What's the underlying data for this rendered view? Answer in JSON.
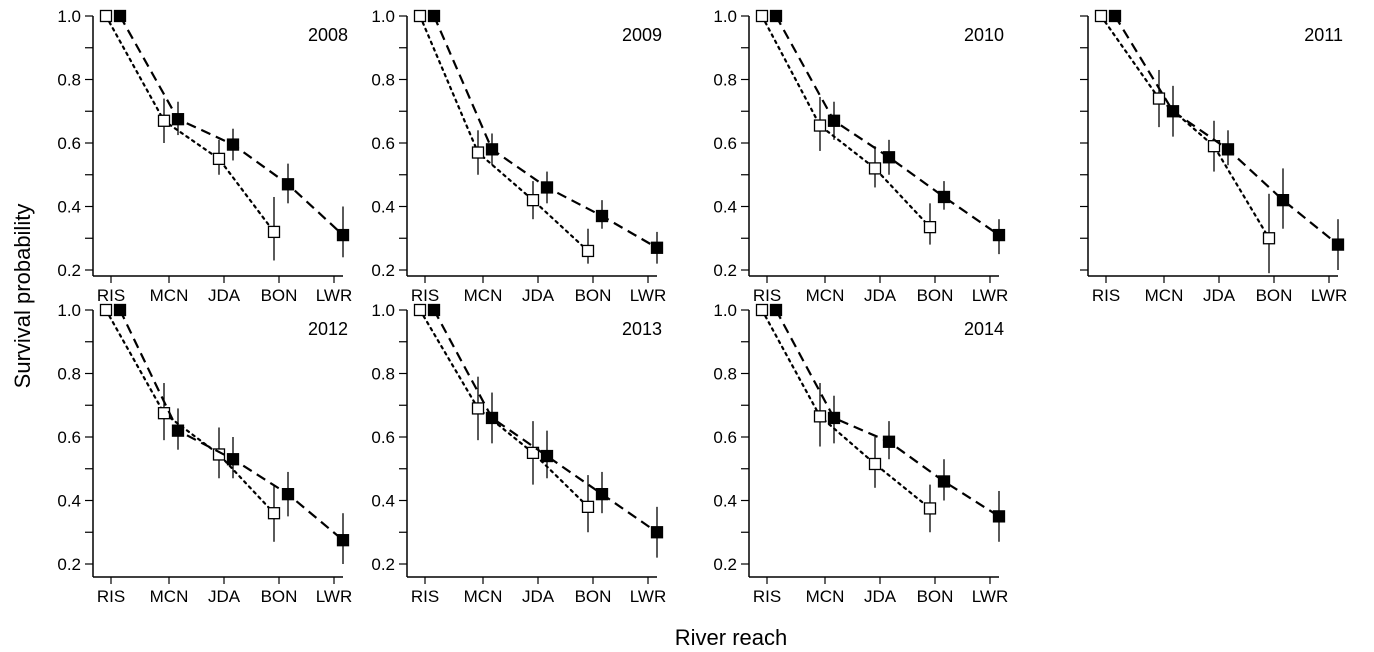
{
  "figure": {
    "ylabel": "Survival probability",
    "xlabel": "River reach"
  },
  "chart_data": [
    {
      "type": "scatter",
      "title": "2008",
      "categories": [
        "RIS",
        "MCN",
        "JDA",
        "BON",
        "LWR"
      ],
      "ylim": [
        0.2,
        1.0
      ],
      "yticks": [
        "0.2",
        "0.4",
        "0.6",
        "0.8",
        "1.0"
      ],
      "series": [
        {
          "style": "open-square-dotted",
          "points": [
            {
              "cat": "RIS",
              "y": 1.0
            },
            {
              "cat": "MCN",
              "y": 0.67,
              "lo": 0.6,
              "hi": 0.74
            },
            {
              "cat": "JDA",
              "y": 0.55,
              "lo": 0.5,
              "hi": 0.61
            },
            {
              "cat": "BON",
              "y": 0.32,
              "lo": 0.23,
              "hi": 0.43
            }
          ]
        },
        {
          "style": "filled-square-dashed",
          "points": [
            {
              "cat": "RIS",
              "y": 1.0
            },
            {
              "cat": "MCN",
              "y": 0.675,
              "lo": 0.625,
              "hi": 0.73
            },
            {
              "cat": "JDA",
              "y": 0.595,
              "lo": 0.545,
              "hi": 0.645
            },
            {
              "cat": "BON",
              "y": 0.47,
              "lo": 0.41,
              "hi": 0.535
            },
            {
              "cat": "LWR",
              "y": 0.31,
              "lo": 0.24,
              "hi": 0.4
            }
          ]
        }
      ]
    },
    {
      "type": "scatter",
      "title": "2009",
      "categories": [
        "RIS",
        "MCN",
        "JDA",
        "BON",
        "LWR"
      ],
      "ylim": [
        0.2,
        1.0
      ],
      "yticks": [
        "0.2",
        "0.4",
        "0.6",
        "0.8",
        "1.0"
      ],
      "series": [
        {
          "style": "open-square-dotted",
          "points": [
            {
              "cat": "RIS",
              "y": 1.0
            },
            {
              "cat": "MCN",
              "y": 0.57,
              "lo": 0.5,
              "hi": 0.64
            },
            {
              "cat": "JDA",
              "y": 0.42,
              "lo": 0.36,
              "hi": 0.48
            },
            {
              "cat": "BON",
              "y": 0.26,
              "lo": 0.22,
              "hi": 0.33
            }
          ]
        },
        {
          "style": "filled-square-dashed",
          "points": [
            {
              "cat": "RIS",
              "y": 1.0
            },
            {
              "cat": "MCN",
              "y": 0.58,
              "lo": 0.53,
              "hi": 0.63
            },
            {
              "cat": "JDA",
              "y": 0.46,
              "lo": 0.41,
              "hi": 0.51
            },
            {
              "cat": "BON",
              "y": 0.37,
              "lo": 0.33,
              "hi": 0.42
            },
            {
              "cat": "LWR",
              "y": 0.27,
              "lo": 0.22,
              "hi": 0.32
            }
          ]
        }
      ]
    },
    {
      "type": "scatter",
      "title": "2010",
      "categories": [
        "RIS",
        "MCN",
        "JDA",
        "BON",
        "LWR"
      ],
      "ylim": [
        0.2,
        1.0
      ],
      "yticks": [
        "0.2",
        "0.4",
        "0.6",
        "0.8",
        "1.0"
      ],
      "series": [
        {
          "style": "open-square-dotted",
          "points": [
            {
              "cat": "RIS",
              "y": 1.0
            },
            {
              "cat": "MCN",
              "y": 0.655,
              "lo": 0.575,
              "hi": 0.745
            },
            {
              "cat": "JDA",
              "y": 0.52,
              "lo": 0.46,
              "hi": 0.59
            },
            {
              "cat": "BON",
              "y": 0.335,
              "lo": 0.28,
              "hi": 0.41
            }
          ]
        },
        {
          "style": "filled-square-dashed",
          "points": [
            {
              "cat": "RIS",
              "y": 1.0
            },
            {
              "cat": "MCN",
              "y": 0.67,
              "lo": 0.61,
              "hi": 0.73
            },
            {
              "cat": "JDA",
              "y": 0.555,
              "lo": 0.5,
              "hi": 0.61
            },
            {
              "cat": "BON",
              "y": 0.43,
              "lo": 0.39,
              "hi": 0.48
            },
            {
              "cat": "LWR",
              "y": 0.31,
              "lo": 0.25,
              "hi": 0.36
            }
          ]
        }
      ]
    },
    {
      "type": "scatter",
      "title": "2011",
      "categories": [
        "RIS",
        "MCN",
        "JDA",
        "BON",
        "LWR"
      ],
      "ylim": [
        0.2,
        1.0
      ],
      "yticks": [],
      "series": [
        {
          "style": "open-square-dotted",
          "points": [
            {
              "cat": "RIS",
              "y": 1.0
            },
            {
              "cat": "MCN",
              "y": 0.74,
              "lo": 0.65,
              "hi": 0.83
            },
            {
              "cat": "JDA",
              "y": 0.59,
              "lo": 0.51,
              "hi": 0.67
            },
            {
              "cat": "BON",
              "y": 0.3,
              "lo": 0.19,
              "hi": 0.44
            }
          ]
        },
        {
          "style": "filled-square-dashed",
          "points": [
            {
              "cat": "RIS",
              "y": 1.0
            },
            {
              "cat": "MCN",
              "y": 0.7,
              "lo": 0.62,
              "hi": 0.78
            },
            {
              "cat": "JDA",
              "y": 0.58,
              "lo": 0.53,
              "hi": 0.64
            },
            {
              "cat": "BON",
              "y": 0.42,
              "lo": 0.33,
              "hi": 0.52
            },
            {
              "cat": "LWR",
              "y": 0.28,
              "lo": 0.2,
              "hi": 0.36
            }
          ]
        }
      ]
    },
    {
      "type": "scatter",
      "title": "2012",
      "categories": [
        "RIS",
        "MCN",
        "JDA",
        "BON",
        "LWR"
      ],
      "ylim": [
        0.2,
        1.0
      ],
      "yticks": [
        "0.2",
        "0.4",
        "0.6",
        "0.8",
        "1.0"
      ],
      "series": [
        {
          "style": "open-square-dotted",
          "points": [
            {
              "cat": "RIS",
              "y": 1.0
            },
            {
              "cat": "MCN",
              "y": 0.675,
              "lo": 0.59,
              "hi": 0.77
            },
            {
              "cat": "JDA",
              "y": 0.545,
              "lo": 0.47,
              "hi": 0.63
            },
            {
              "cat": "BON",
              "y": 0.36,
              "lo": 0.27,
              "hi": 0.45
            }
          ]
        },
        {
          "style": "filled-square-dashed",
          "points": [
            {
              "cat": "RIS",
              "y": 1.0
            },
            {
              "cat": "MCN",
              "y": 0.62,
              "lo": 0.56,
              "hi": 0.69
            },
            {
              "cat": "JDA",
              "y": 0.53,
              "lo": 0.47,
              "hi": 0.6
            },
            {
              "cat": "BON",
              "y": 0.42,
              "lo": 0.35,
              "hi": 0.49
            },
            {
              "cat": "LWR",
              "y": 0.275,
              "lo": 0.2,
              "hi": 0.36
            }
          ]
        }
      ]
    },
    {
      "type": "scatter",
      "title": "2013",
      "categories": [
        "RIS",
        "MCN",
        "JDA",
        "BON",
        "LWR"
      ],
      "ylim": [
        0.2,
        1.0
      ],
      "yticks": [
        "0.2",
        "0.4",
        "0.6",
        "0.8",
        "1.0"
      ],
      "series": [
        {
          "style": "open-square-dotted",
          "points": [
            {
              "cat": "RIS",
              "y": 1.0
            },
            {
              "cat": "MCN",
              "y": 0.69,
              "lo": 0.59,
              "hi": 0.79
            },
            {
              "cat": "JDA",
              "y": 0.55,
              "lo": 0.45,
              "hi": 0.65
            },
            {
              "cat": "BON",
              "y": 0.38,
              "lo": 0.3,
              "hi": 0.48
            }
          ]
        },
        {
          "style": "filled-square-dashed",
          "points": [
            {
              "cat": "RIS",
              "y": 1.0
            },
            {
              "cat": "MCN",
              "y": 0.66,
              "lo": 0.58,
              "hi": 0.74
            },
            {
              "cat": "JDA",
              "y": 0.54,
              "lo": 0.47,
              "hi": 0.62
            },
            {
              "cat": "BON",
              "y": 0.42,
              "lo": 0.36,
              "hi": 0.49
            },
            {
              "cat": "LWR",
              "y": 0.3,
              "lo": 0.22,
              "hi": 0.38
            }
          ]
        }
      ]
    },
    {
      "type": "scatter",
      "title": "2014",
      "categories": [
        "RIS",
        "MCN",
        "JDA",
        "BON",
        "LWR"
      ],
      "ylim": [
        0.2,
        1.0
      ],
      "yticks": [
        "0.2",
        "0.4",
        "0.6",
        "0.8",
        "1.0"
      ],
      "series": [
        {
          "style": "open-square-dotted",
          "points": [
            {
              "cat": "RIS",
              "y": 1.0
            },
            {
              "cat": "MCN",
              "y": 0.665,
              "lo": 0.57,
              "hi": 0.77
            },
            {
              "cat": "JDA",
              "y": 0.515,
              "lo": 0.44,
              "hi": 0.6
            },
            {
              "cat": "BON",
              "y": 0.375,
              "lo": 0.3,
              "hi": 0.45
            }
          ]
        },
        {
          "style": "filled-square-dashed",
          "points": [
            {
              "cat": "RIS",
              "y": 1.0
            },
            {
              "cat": "MCN",
              "y": 0.66,
              "lo": 0.58,
              "hi": 0.73
            },
            {
              "cat": "JDA",
              "y": 0.585,
              "lo": 0.53,
              "hi": 0.65
            },
            {
              "cat": "BON",
              "y": 0.46,
              "lo": 0.4,
              "hi": 0.53
            },
            {
              "cat": "LWR",
              "y": 0.35,
              "lo": 0.27,
              "hi": 0.43
            }
          ]
        }
      ]
    }
  ]
}
